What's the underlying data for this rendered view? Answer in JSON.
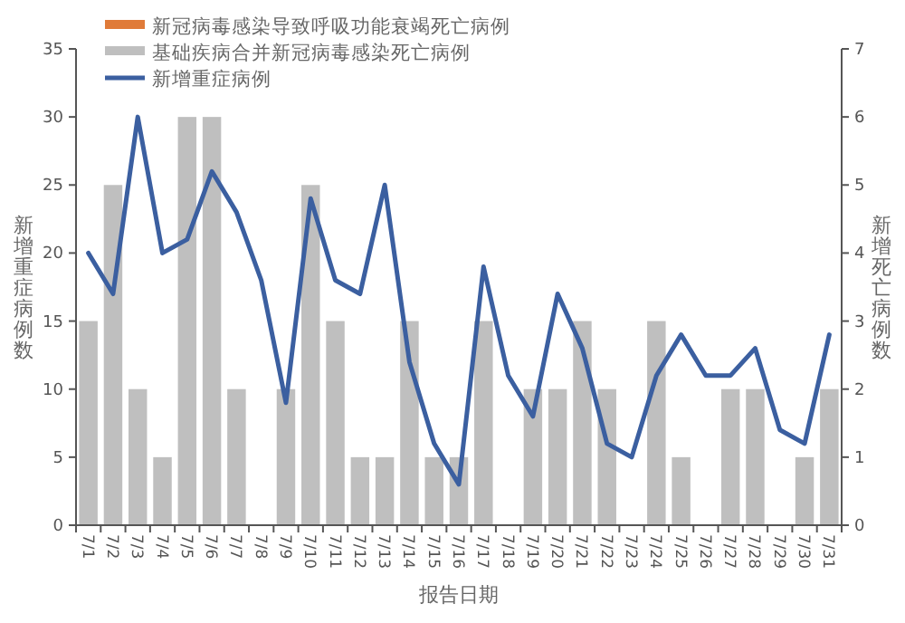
{
  "chart_data": {
    "type": "bar",
    "xlabel": "报告日期",
    "ylabel": "新增重症病例数",
    "y2label": "新增死亡病例数",
    "categories": [
      "7/1",
      "7/2",
      "7/3",
      "7/4",
      "7/5",
      "7/6",
      "7/7",
      "7/8",
      "7/9",
      "7/10",
      "7/11",
      "7/12",
      "7/13",
      "7/14",
      "7/15",
      "7/16",
      "7/17",
      "7/18",
      "7/19",
      "7/20",
      "7/21",
      "7/22",
      "7/23",
      "7/24",
      "7/25",
      "7/26",
      "7/27",
      "7/28",
      "7/29",
      "7/30",
      "7/31"
    ],
    "legend": "top left",
    "grid": false,
    "series": [
      {
        "name": "新冠病毒感染导致呼吸功能衰竭死亡病例",
        "axis": "y2",
        "color": "#e07b39",
        "values": [
          0,
          0,
          0,
          0,
          0,
          0,
          0,
          0,
          0,
          0,
          0,
          0,
          0,
          0,
          0,
          0,
          0,
          0,
          0,
          0,
          0,
          0,
          0,
          0,
          0,
          0,
          0,
          0,
          0,
          0,
          0
        ]
      },
      {
        "name": "基础疾病合并新冠病毒感染死亡病例",
        "axis": "y2",
        "color": "#bfbfbf",
        "values": [
          3,
          5,
          2,
          1,
          6,
          6,
          2,
          0,
          2,
          5,
          3,
          1,
          1,
          3,
          1,
          1,
          3,
          0,
          2,
          2,
          3,
          2,
          0,
          3,
          1,
          0,
          2,
          2,
          0,
          1,
          2
        ]
      },
      {
        "name": "新增重症病例",
        "type": "line",
        "axis": "y",
        "color": "#3b5fa0",
        "values": [
          20,
          17,
          30,
          20,
          21,
          26,
          23,
          18,
          9,
          24,
          18,
          17,
          25,
          12,
          6,
          3,
          19,
          11,
          8,
          17,
          13,
          6,
          5,
          11,
          14,
          11,
          11,
          13,
          7,
          6,
          14
        ]
      }
    ],
    "ylim": [
      0,
      35
    ],
    "yticks": [
      0,
      5,
      10,
      15,
      20,
      25,
      30,
      35
    ],
    "y2lim": [
      0,
      7
    ],
    "y2ticks": [
      0,
      1,
      2,
      3,
      4,
      5,
      6,
      7
    ]
  }
}
